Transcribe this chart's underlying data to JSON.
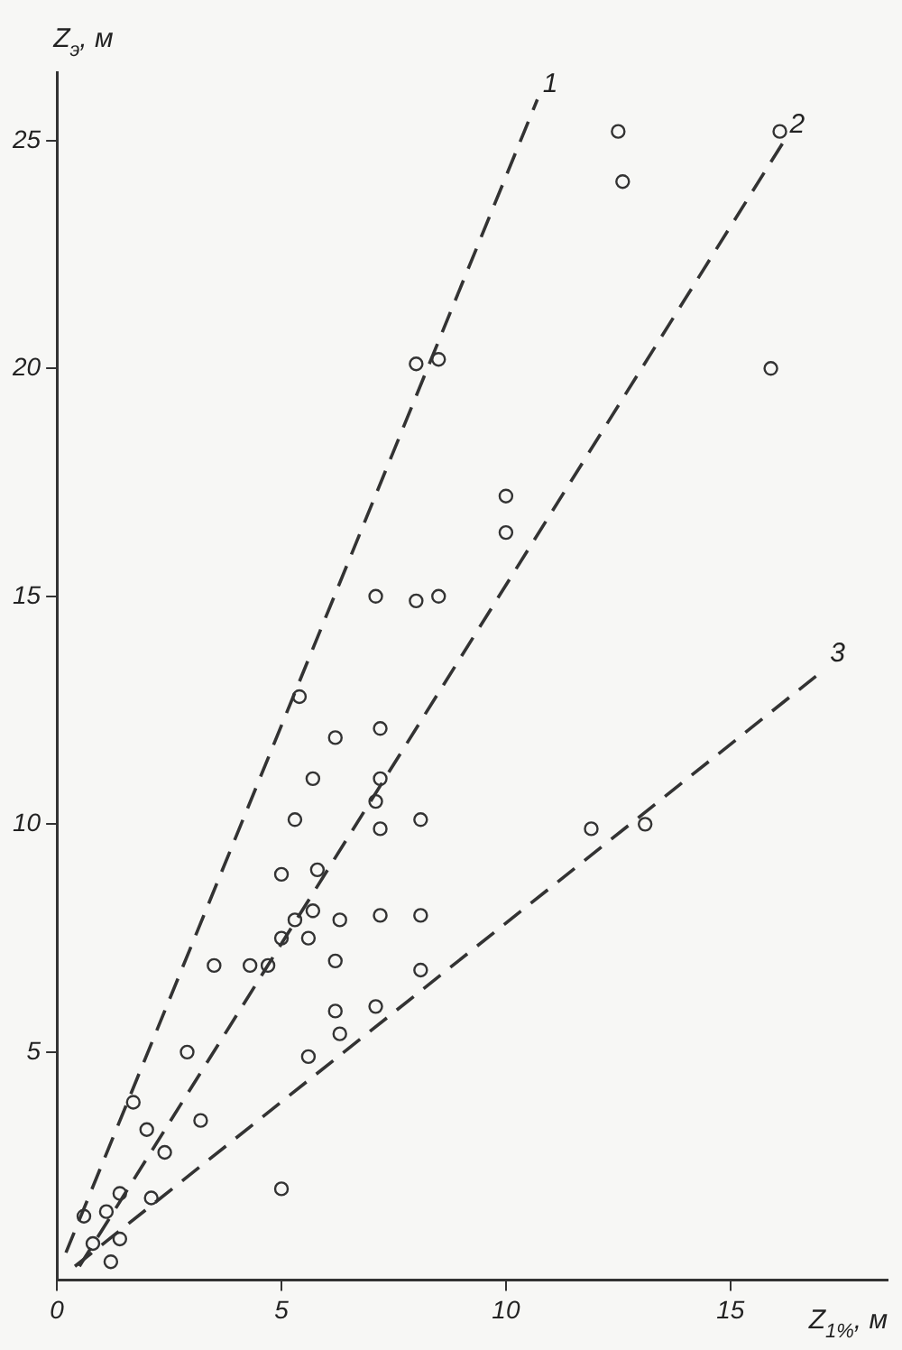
{
  "chart_data": {
    "type": "scatter",
    "xlabel": "Z$_{1%}$, м",
    "ylabel": "Z$_{э}$, м",
    "xlim": [
      0,
      18.5
    ],
    "ylim": [
      0,
      26.5
    ],
    "xticks": [
      0,
      5,
      10,
      15
    ],
    "yticks": [
      5,
      10,
      15,
      20,
      25
    ],
    "grid": false,
    "legend": false,
    "marker": "circle",
    "series": [
      {
        "type": "scatter",
        "color": "#333333",
        "x": [
          6.2,
          7.2,
          5.7,
          7.2,
          7.1,
          5.3,
          7.2,
          8.1,
          5.0,
          5.8,
          5.7,
          5.3,
          6.3,
          7.2,
          8.1,
          5.0,
          5.6,
          3.5,
          4.3,
          4.7,
          6.2,
          8.1,
          6.2,
          7.1,
          6.3,
          5.6,
          2.9,
          1.7,
          2.0,
          3.2,
          2.4,
          5.0,
          1.4,
          1.1,
          0.6,
          2.1,
          0.8,
          1.4,
          1.2,
          12.5,
          16.1,
          12.6,
          8.0,
          8.5,
          15.9,
          10.0,
          10.0,
          7.1,
          8.0,
          8.5,
          5.4,
          11.9,
          13.1
        ],
        "values": [
          11.9,
          12.1,
          11.0,
          11.0,
          10.5,
          10.1,
          9.9,
          10.1,
          8.9,
          9.0,
          8.1,
          7.9,
          7.9,
          8.0,
          8.0,
          7.5,
          7.5,
          6.9,
          6.9,
          6.9,
          7.0,
          6.8,
          5.9,
          6.0,
          5.4,
          4.9,
          5.0,
          3.9,
          3.3,
          3.5,
          2.8,
          2.0,
          1.9,
          1.5,
          1.4,
          1.8,
          0.8,
          0.9,
          0.4,
          25.2,
          25.2,
          24.1,
          20.1,
          20.2,
          20.0,
          17.2,
          16.4,
          15.0,
          14.9,
          15.0,
          12.8,
          9.9,
          10.0
        ]
      },
      {
        "type": "line",
        "name": "1",
        "color": "#333333",
        "line_style": "dashed",
        "marker": "none",
        "x": [
          0.2,
          10.7
        ],
        "values": [
          0.6,
          25.9
        ]
      },
      {
        "type": "line",
        "name": "2",
        "color": "#333333",
        "line_style": "dashed",
        "marker": "none",
        "x": [
          0.5,
          16.2
        ],
        "values": [
          0.3,
          25.0
        ]
      },
      {
        "type": "line",
        "name": "3",
        "color": "#333333",
        "line_style": "dashed",
        "marker": "none",
        "x": [
          0.4,
          17.1
        ],
        "values": [
          0.3,
          13.4
        ]
      }
    ]
  }
}
